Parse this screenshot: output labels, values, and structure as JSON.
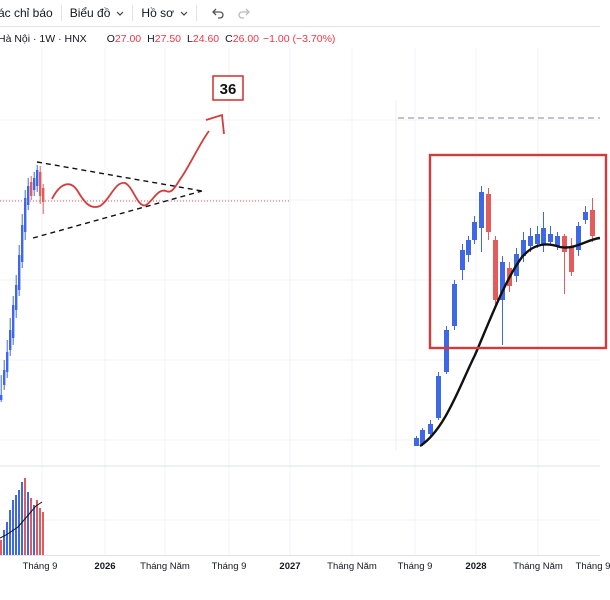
{
  "toolbar": {
    "indicators_label": "ác chỉ báo",
    "chart_label": "Biểu đồ",
    "profile_label": "Hồ sơ",
    "undo_icon": "undo-icon",
    "redo_icon": "redo-icon"
  },
  "symbol": {
    "name": "Hà Nội · 1W · HNX",
    "open_label": "O",
    "open": "27.00",
    "high_label": "H",
    "high": "27.50",
    "low_label": "L",
    "low": "24.60",
    "close_label": "C",
    "close": "26.00",
    "change": "−1.00 (−3.70%)"
  },
  "annotation": {
    "target_label": "36"
  },
  "xaxis": {
    "labels": [
      "Tháng 9",
      "2026",
      "Tháng Năm",
      "Tháng 9",
      "2027",
      "Tháng Năm",
      "Tháng 9",
      "2028",
      "Tháng Năm",
      "Tháng 9"
    ]
  },
  "colors": {
    "up": "#3f68e8",
    "down": "#e35b5b",
    "annotation": "#d94848",
    "box": "#d23b3b",
    "wave": "#d43c3c"
  }
}
